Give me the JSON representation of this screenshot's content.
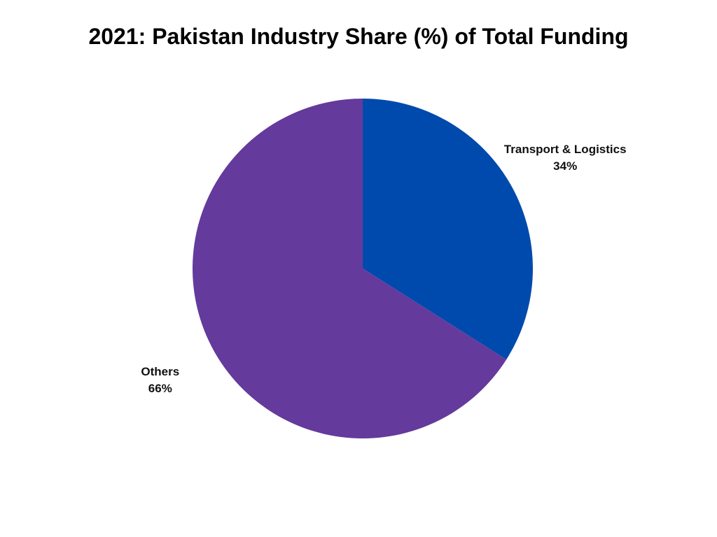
{
  "chart_data": {
    "type": "pie",
    "title": "2021: Pakistan Industry Share (%) of Total Funding",
    "slices": [
      {
        "label": "Transport & Logistics",
        "value": 34,
        "value_label": "34%",
        "color": "#004AAD"
      },
      {
        "label": "Others",
        "value": 66,
        "value_label": "66%",
        "color": "#643A9C"
      }
    ],
    "start_angle_deg": 0,
    "direction": "clockwise",
    "legend": "none",
    "labels": "outside"
  }
}
